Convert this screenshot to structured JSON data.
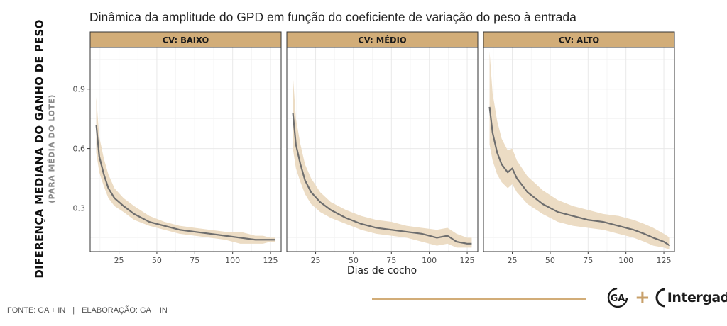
{
  "title": "Dinâmica da amplitude do GPD em função do coeficiente de variação do peso à entrada",
  "ylabel_main": "DIFERENÇA MEDIANA DO GANHO DE PESO",
  "ylabel_sub": "(PARA MÉDIA DO LOTE)",
  "xlabel": "Dias de cocho",
  "source": {
    "fonte": "FONTE: GA + IN",
    "separator": "|",
    "elaboracao": "ELABORAÇÃO: GA + IN"
  },
  "logos": {
    "ga": "GA",
    "plus": "+",
    "intergado": "Intergado"
  },
  "colors": {
    "strip": "#d2ad78",
    "band": "#ecdcc4",
    "line": "#6e6e6e",
    "footer_line": "#d2ad78"
  },
  "chart_data": {
    "type": "line",
    "facet": "CV",
    "xlim": [
      6,
      132
    ],
    "ylim": [
      0.08,
      1.11
    ],
    "x_ticks": [
      25,
      50,
      75,
      100,
      125
    ],
    "y_ticks": [
      0.3,
      0.6,
      0.9
    ],
    "y_tick_labels": [
      "0.3",
      "0.6",
      "0.9"
    ],
    "grid": true,
    "panels": [
      {
        "label": "CV: BAIXO",
        "x": [
          10,
          12,
          15,
          18,
          22,
          28,
          35,
          45,
          55,
          65,
          75,
          85,
          95,
          105,
          115,
          120,
          125,
          128
        ],
        "y": [
          0.72,
          0.56,
          0.47,
          0.4,
          0.35,
          0.31,
          0.27,
          0.23,
          0.21,
          0.19,
          0.18,
          0.17,
          0.16,
          0.15,
          0.14,
          0.14,
          0.14,
          0.14
        ],
        "lower": [
          0.58,
          0.48,
          0.41,
          0.35,
          0.31,
          0.28,
          0.24,
          0.21,
          0.19,
          0.17,
          0.16,
          0.15,
          0.14,
          0.12,
          0.12,
          0.12,
          0.13,
          0.13
        ],
        "upper": [
          0.86,
          0.66,
          0.55,
          0.47,
          0.4,
          0.35,
          0.31,
          0.26,
          0.23,
          0.21,
          0.2,
          0.19,
          0.18,
          0.18,
          0.16,
          0.16,
          0.15,
          0.15
        ]
      },
      {
        "label": "CV: MÉDIO",
        "x": [
          10,
          12,
          15,
          18,
          22,
          28,
          35,
          45,
          55,
          65,
          75,
          85,
          95,
          105,
          112,
          118,
          125,
          128
        ],
        "y": [
          0.78,
          0.62,
          0.52,
          0.44,
          0.38,
          0.33,
          0.29,
          0.25,
          0.22,
          0.2,
          0.19,
          0.18,
          0.17,
          0.15,
          0.16,
          0.13,
          0.12,
          0.12
        ],
        "lower": [
          0.6,
          0.5,
          0.43,
          0.37,
          0.32,
          0.28,
          0.25,
          0.22,
          0.19,
          0.17,
          0.16,
          0.15,
          0.13,
          0.11,
          0.12,
          0.1,
          0.1,
          0.1
        ],
        "upper": [
          0.97,
          0.75,
          0.62,
          0.52,
          0.45,
          0.38,
          0.33,
          0.29,
          0.26,
          0.24,
          0.23,
          0.21,
          0.2,
          0.19,
          0.2,
          0.17,
          0.15,
          0.15
        ]
      },
      {
        "label": "CV: ALTO",
        "x": [
          10,
          12,
          15,
          18,
          22,
          25,
          28,
          35,
          45,
          55,
          65,
          75,
          85,
          95,
          105,
          112,
          118,
          125,
          129
        ],
        "y": [
          0.81,
          0.68,
          0.58,
          0.52,
          0.48,
          0.5,
          0.45,
          0.38,
          0.32,
          0.28,
          0.26,
          0.24,
          0.23,
          0.21,
          0.19,
          0.17,
          0.15,
          0.13,
          0.11
        ],
        "lower": [
          0.62,
          0.54,
          0.47,
          0.43,
          0.4,
          0.42,
          0.38,
          0.32,
          0.27,
          0.23,
          0.21,
          0.2,
          0.19,
          0.17,
          0.15,
          0.13,
          0.11,
          0.1,
          0.09
        ],
        "upper": [
          1.09,
          0.88,
          0.74,
          0.65,
          0.59,
          0.6,
          0.54,
          0.46,
          0.39,
          0.34,
          0.31,
          0.29,
          0.27,
          0.26,
          0.24,
          0.22,
          0.2,
          0.17,
          0.15
        ]
      }
    ]
  }
}
